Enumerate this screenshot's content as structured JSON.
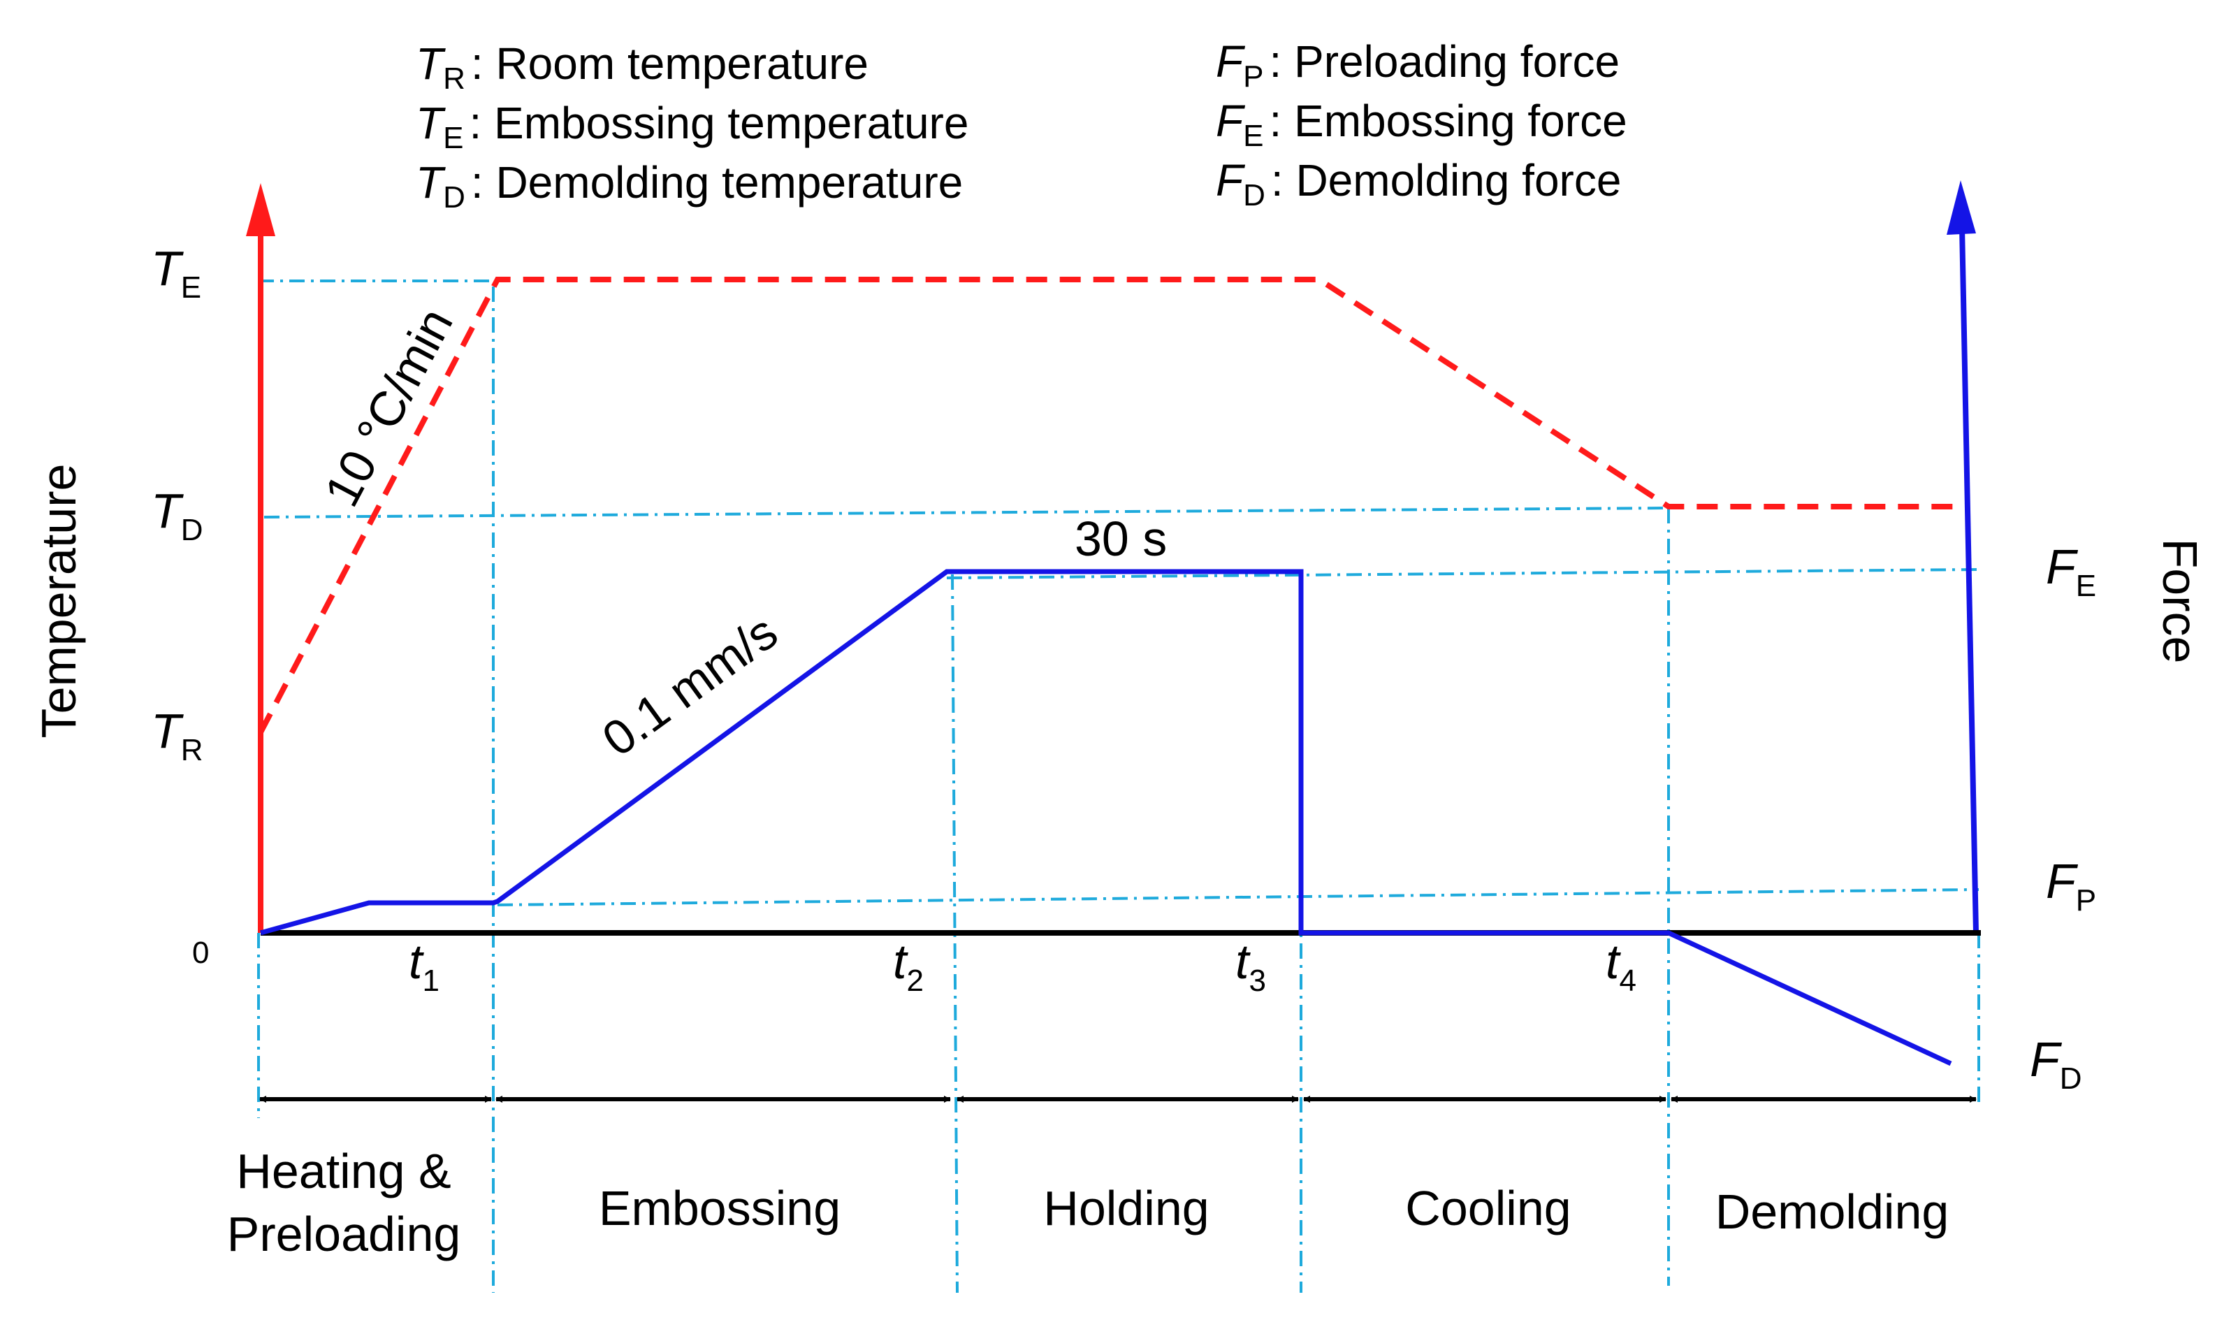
{
  "legend_temperature": [
    {
      "symbol": "T",
      "sub": "R",
      "desc": ": Room temperature"
    },
    {
      "symbol": "T",
      "sub": "E",
      "desc": ": Embossing temperature"
    },
    {
      "symbol": "T",
      "sub": "D",
      "desc": ": Demolding temperature"
    }
  ],
  "legend_force": [
    {
      "symbol": "F",
      "sub": "P",
      "desc": ": Preloading force"
    },
    {
      "symbol": "F",
      "sub": "E",
      "desc": ": Embossing force"
    },
    {
      "symbol": "F",
      "sub": "D",
      "desc": ": Demolding force"
    }
  ],
  "axes": {
    "left_label": "Temperature",
    "right_label": "Force",
    "origin": "0"
  },
  "temp_levels": [
    {
      "symbol": "T",
      "sub": "E"
    },
    {
      "symbol": "T",
      "sub": "D"
    },
    {
      "symbol": "T",
      "sub": "R"
    }
  ],
  "force_levels": [
    {
      "symbol": "F",
      "sub": "E"
    },
    {
      "symbol": "F",
      "sub": "P"
    },
    {
      "symbol": "F",
      "sub": "D"
    }
  ],
  "times": [
    {
      "symbol": "t",
      "sub": "1"
    },
    {
      "symbol": "t",
      "sub": "2"
    },
    {
      "symbol": "t",
      "sub": "3"
    },
    {
      "symbol": "t",
      "sub": "4"
    }
  ],
  "annotations": {
    "heating_rate": "10 °C/min",
    "embossing_speed": "0.1 mm/s",
    "hold_time": "30 s"
  },
  "stages": {
    "heating_line1": "Heating &",
    "heating_line2": "Preloading",
    "embossing": "Embossing",
    "holding": "Holding",
    "cooling": "Cooling",
    "demolding": "Demolding"
  },
  "colors": {
    "temperature": "#ff1a1a",
    "force": "#1414e6",
    "guide": "#1eaadc",
    "axis": "#000000"
  }
}
